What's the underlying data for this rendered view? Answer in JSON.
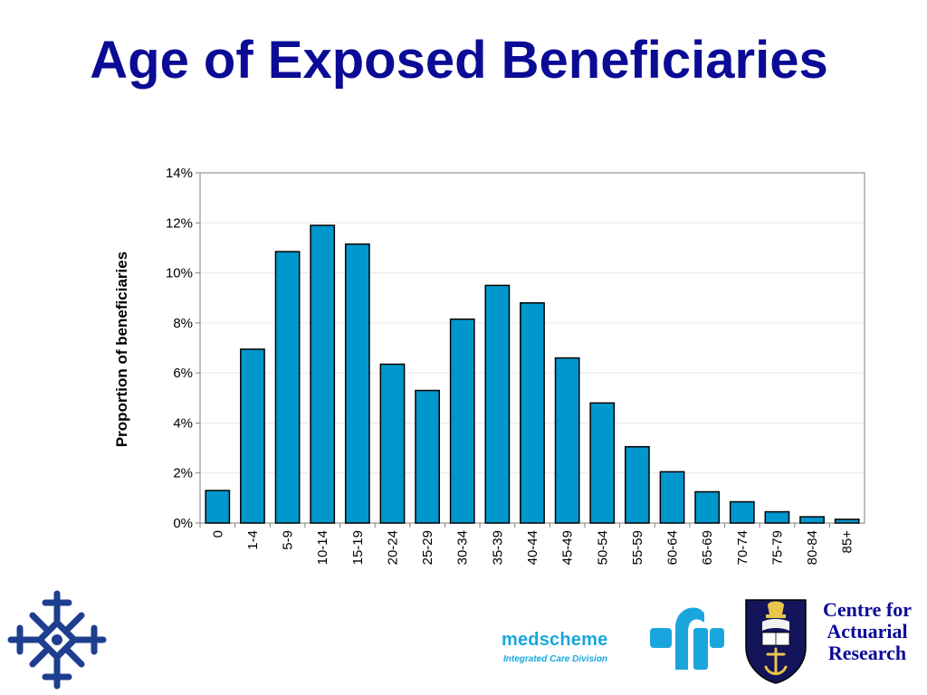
{
  "slide": {
    "title": "Age of Exposed Beneficiaries"
  },
  "colors": {
    "title": "#0b0b96",
    "bar_fill": "#0097cc",
    "bar_stroke": "#000000",
    "medscheme_blue": "#1aa6dd",
    "crest_navy": "#14145a"
  },
  "logos": {
    "left": {
      "icon": "interlocking-cross-logo-icon"
    },
    "medscheme": {
      "wordmark": "medscheme",
      "tagline": "Integrated Care Division",
      "icon": "medscheme-mark-icon"
    },
    "university": {
      "icon": "university-crest-icon"
    },
    "car": {
      "line1": "Centre for",
      "line2": "Actuarial",
      "line3": "Research"
    }
  },
  "chart_data": {
    "type": "bar",
    "title": "",
    "xlabel": "",
    "ylabel": "Proportion of beneficiaries",
    "categories": [
      "0",
      "1-4",
      "5-9",
      "10-14",
      "15-19",
      "20-24",
      "25-29",
      "30-34",
      "35-39",
      "40-44",
      "45-49",
      "50-54",
      "55-59",
      "60-64",
      "65-69",
      "70-74",
      "75-79",
      "80-84",
      "85+"
    ],
    "values": [
      1.3,
      6.95,
      10.85,
      11.9,
      11.15,
      6.35,
      5.3,
      8.15,
      9.5,
      8.8,
      6.6,
      4.8,
      3.05,
      2.05,
      1.25,
      0.85,
      0.45,
      0.25,
      0.15
    ],
    "ylim": [
      0,
      14
    ],
    "yticks": [
      0,
      2,
      4,
      6,
      8,
      10,
      12,
      14
    ],
    "ytick_labels": [
      "0%",
      "2%",
      "4%",
      "6%",
      "8%",
      "10%",
      "12%",
      "14%"
    ],
    "grid": true,
    "legend": "none"
  }
}
